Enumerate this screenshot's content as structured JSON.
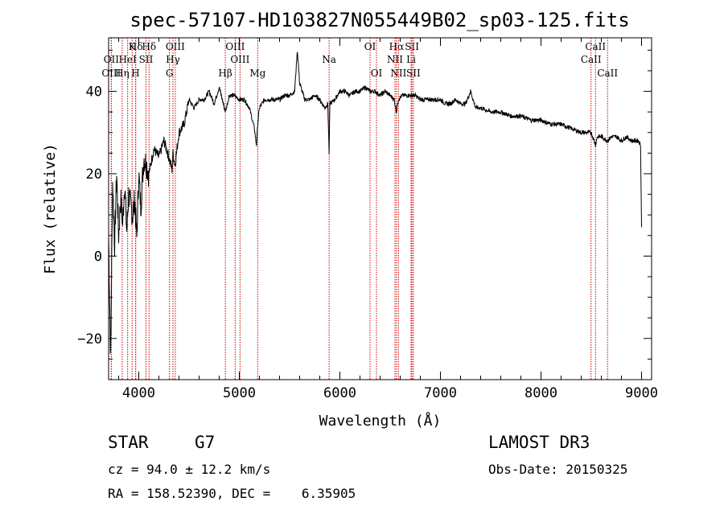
{
  "chart_data": {
    "type": "line",
    "title": "spec-57107-HD103827N055449B02_sp03-125.fits",
    "xlabel": "Wavelength (Å)",
    "ylabel": "Flux (relative)",
    "xlim": [
      3700,
      9100
    ],
    "ylim": [
      -30,
      53
    ],
    "xticks": [
      4000,
      5000,
      6000,
      7000,
      8000,
      9000
    ],
    "xtick_labels": [
      "4000",
      "5000",
      "6000",
      "7000",
      "8000",
      "9000"
    ],
    "yticks": [
      -20,
      0,
      20,
      40
    ],
    "ytick_labels": [
      "−20",
      "0",
      "20",
      "40"
    ],
    "spectrum": {
      "x": [
        3700,
        3720,
        3740,
        3760,
        3780,
        3800,
        3820,
        3840,
        3860,
        3880,
        3900,
        3920,
        3940,
        3960,
        3980,
        4000,
        4020,
        4050,
        4080,
        4100,
        4150,
        4200,
        4250,
        4300,
        4330,
        4340,
        4360,
        4400,
        4450,
        4500,
        4550,
        4600,
        4650,
        4700,
        4750,
        4800,
        4861,
        4900,
        4950,
        5000,
        5050,
        5100,
        5150,
        5170,
        5183,
        5200,
        5250,
        5300,
        5350,
        5400,
        5450,
        5500,
        5550,
        5577,
        5600,
        5650,
        5700,
        5750,
        5800,
        5850,
        5880,
        5893,
        5900,
        5950,
        6000,
        6050,
        6100,
        6150,
        6200,
        6250,
        6300,
        6350,
        6400,
        6450,
        6500,
        6540,
        6563,
        6580,
        6620,
        6700,
        6750,
        6800,
        6850,
        6900,
        6950,
        7000,
        7050,
        7100,
        7150,
        7200,
        7250,
        7300,
        7350,
        7400,
        7500,
        7600,
        7700,
        7800,
        7900,
        8000,
        8100,
        8200,
        8300,
        8400,
        8450,
        8500,
        8542,
        8560,
        8600,
        8662,
        8700,
        8750,
        8800,
        8850,
        8900,
        8950,
        8970,
        8990,
        9000
      ],
      "y": [
        5,
        -25,
        18,
        3,
        20,
        5,
        14,
        8,
        18,
        6,
        15,
        12,
        10,
        14,
        4,
        20,
        12,
        24,
        22,
        20,
        26,
        24,
        28,
        24,
        21,
        25,
        22,
        30,
        32,
        38,
        36,
        38,
        38,
        40,
        37,
        41,
        35,
        39,
        39,
        38,
        38,
        36,
        31,
        27,
        32,
        36,
        38,
        38,
        38,
        38,
        39,
        39,
        40,
        50,
        42,
        38,
        38,
        39,
        38,
        36,
        37,
        25,
        37,
        38,
        40,
        40,
        39,
        40,
        40,
        41,
        40,
        40,
        39,
        40,
        39,
        38,
        35,
        38,
        39,
        39,
        39,
        38,
        38,
        38,
        38,
        38,
        37,
        37,
        38,
        37,
        37,
        40,
        36,
        36,
        35,
        35,
        34,
        34,
        33,
        33,
        32,
        32,
        31,
        30,
        30,
        30,
        27,
        29,
        29,
        28,
        29,
        29,
        28,
        29,
        28,
        28,
        28,
        27,
        7
      ]
    },
    "spectral_lines": [
      {
        "label": "Hδ",
        "x": 3970,
        "row": 1
      },
      {
        "label": "OII",
        "x": 3727,
        "row": 2
      },
      {
        "label": "OIII",
        "x": 3727,
        "row": 3
      },
      {
        "label": "K",
        "x": 3934,
        "row": 1
      },
      {
        "label": "HeI",
        "x": 3889,
        "row": 2
      },
      {
        "label": "Hη",
        "x": 3835,
        "row": 3
      },
      {
        "label": "Hδ",
        "x": 4102,
        "row": 1
      },
      {
        "label": "SII",
        "x": 4072,
        "row": 2
      },
      {
        "label": "H",
        "x": 3968,
        "row": 3
      },
      {
        "label": "OIII",
        "x": 4363,
        "row": 1
      },
      {
        "label": "Hγ",
        "x": 4340,
        "row": 2
      },
      {
        "label": "G",
        "x": 4305,
        "row": 3
      },
      {
        "label": "Hβ",
        "x": 4861,
        "row": 3
      },
      {
        "label": "OIII",
        "x": 4959,
        "row": 1
      },
      {
        "label": "OIII",
        "x": 5007,
        "row": 2
      },
      {
        "label": "Mg",
        "x": 5183,
        "row": 3
      },
      {
        "label": "Na",
        "x": 5893,
        "row": 2
      },
      {
        "label": "OI",
        "x": 6300,
        "row": 1
      },
      {
        "label": "OI",
        "x": 6364,
        "row": 3
      },
      {
        "label": "Hα",
        "x": 6563,
        "row": 1
      },
      {
        "label": "NII",
        "x": 6548,
        "row": 2
      },
      {
        "label": "NII",
        "x": 6583,
        "row": 3
      },
      {
        "label": "SII",
        "x": 6717,
        "row": 1
      },
      {
        "label": "Li",
        "x": 6708,
        "row": 2
      },
      {
        "label": "SII",
        "x": 6731,
        "row": 3
      },
      {
        "label": "CaII",
        "x": 8542,
        "row": 1
      },
      {
        "label": "CaII",
        "x": 8498,
        "row": 2
      },
      {
        "label": "CaII",
        "x": 8662,
        "row": 3
      }
    ]
  },
  "footer": {
    "object_class": "STAR",
    "subclass": "G7",
    "survey": "LAMOST DR3",
    "redshift": "cz = 94.0 ± 12.2 km/s",
    "obs_date": "Obs-Date: 20150325",
    "coords": "RA = 158.52390, DEC =    6.35905"
  },
  "colors": {
    "spectrum": "#000000",
    "line_marker": "#cc0000",
    "axis": "#000000"
  }
}
